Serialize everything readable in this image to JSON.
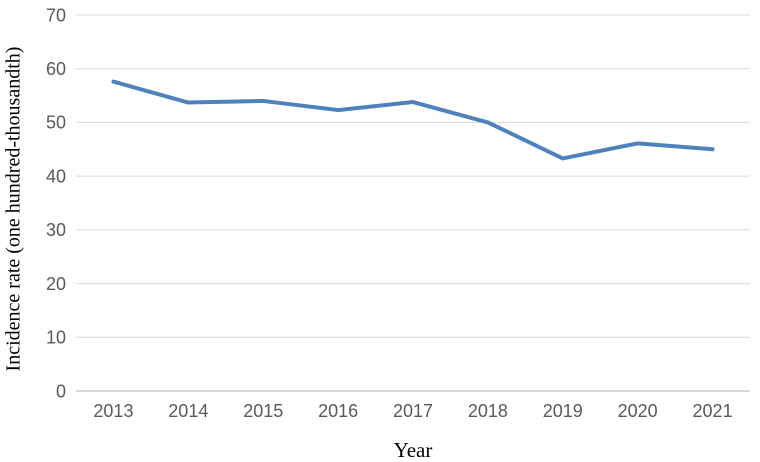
{
  "chart_data": {
    "type": "line",
    "title": "",
    "xlabel": "Year",
    "ylabel": "Incidence rate (one hundred-thousandth)",
    "categories": [
      "2013",
      "2014",
      "2015",
      "2016",
      "2017",
      "2018",
      "2019",
      "2020",
      "2021"
    ],
    "series": [
      {
        "name": "Incidence rate",
        "values": [
          57.6,
          53.7,
          54.0,
          52.3,
          53.8,
          50.0,
          43.3,
          46.1,
          45.0
        ],
        "color": "#4f81bd"
      }
    ],
    "ylim": [
      0,
      70
    ],
    "yticks": [
      0,
      10,
      20,
      30,
      40,
      50,
      60,
      70
    ],
    "grid": true,
    "legend": "none",
    "colors": {
      "line": "#4f81bd",
      "gridline": "#d9d9d9",
      "axis_line": "#bfbfbf",
      "tick_label": "#595959",
      "axis_title": "#000000"
    }
  }
}
